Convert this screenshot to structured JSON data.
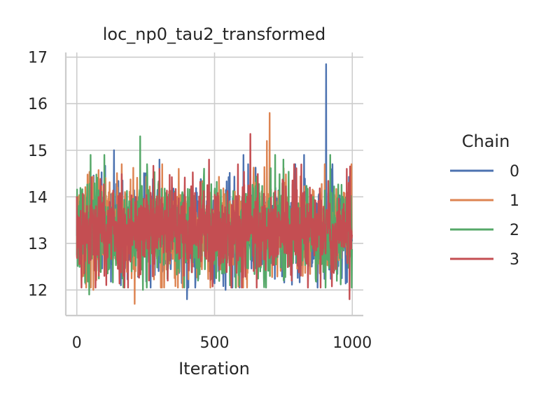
{
  "chart_data": {
    "type": "line",
    "title": "loc_np0_tau2_transformed",
    "xlabel": "Iteration",
    "ylabel": "",
    "xlim": [
      -40,
      1040
    ],
    "ylim": [
      11.45,
      17.1
    ],
    "x_ticks": [
      0,
      500,
      1000
    ],
    "x_tick_labels": [
      "0",
      "500",
      "1000"
    ],
    "y_ticks": [
      12,
      13,
      14,
      15,
      16,
      17
    ],
    "y_tick_labels": [
      "12",
      "13",
      "14",
      "15",
      "16",
      "17"
    ],
    "grid": true,
    "legend": {
      "title": "Chain",
      "placement": "right"
    },
    "n_iterations": 1000,
    "series": [
      {
        "name": "0",
        "color": "#4c72b0",
        "mean": 13.3,
        "spread": 0.5,
        "seed": 11,
        "extremes": [
          {
            "x": 905,
            "y": 16.85
          },
          {
            "x": 400,
            "y": 11.8
          },
          {
            "x": 135,
            "y": 15.0
          },
          {
            "x": 300,
            "y": 14.8
          },
          {
            "x": 605,
            "y": 14.9
          },
          {
            "x": 825,
            "y": 14.9
          },
          {
            "x": 40,
            "y": 12.2
          },
          {
            "x": 160,
            "y": 12.1
          },
          {
            "x": 540,
            "y": 12.0
          },
          {
            "x": 960,
            "y": 12.3
          }
        ]
      },
      {
        "name": "1",
        "color": "#dd8452",
        "mean": 13.3,
        "spread": 0.5,
        "seed": 23,
        "extremes": [
          {
            "x": 700,
            "y": 15.8
          },
          {
            "x": 690,
            "y": 15.2
          },
          {
            "x": 210,
            "y": 11.7
          },
          {
            "x": 310,
            "y": 14.7
          },
          {
            "x": 370,
            "y": 14.6
          },
          {
            "x": 900,
            "y": 14.7
          },
          {
            "x": 60,
            "y": 12.0
          },
          {
            "x": 820,
            "y": 12.3
          },
          {
            "x": 480,
            "y": 12.4
          }
        ]
      },
      {
        "name": "2",
        "color": "#55a868",
        "mean": 13.3,
        "spread": 0.5,
        "seed": 37,
        "extremes": [
          {
            "x": 230,
            "y": 15.3
          },
          {
            "x": 50,
            "y": 14.9
          },
          {
            "x": 100,
            "y": 14.9
          },
          {
            "x": 255,
            "y": 14.7
          },
          {
            "x": 720,
            "y": 14.9
          },
          {
            "x": 920,
            "y": 14.9
          },
          {
            "x": 750,
            "y": 14.8
          },
          {
            "x": 45,
            "y": 11.9
          },
          {
            "x": 590,
            "y": 12.1
          },
          {
            "x": 440,
            "y": 12.2
          },
          {
            "x": 240,
            "y": 12.0
          }
        ]
      },
      {
        "name": "3",
        "color": "#c44e52",
        "mean": 13.3,
        "spread": 0.5,
        "seed": 53,
        "extremes": [
          {
            "x": 630,
            "y": 15.35
          },
          {
            "x": 990,
            "y": 11.8
          },
          {
            "x": 480,
            "y": 14.8
          },
          {
            "x": 300,
            "y": 14.6
          },
          {
            "x": 100,
            "y": 12.3
          },
          {
            "x": 330,
            "y": 12.2
          },
          {
            "x": 560,
            "y": 12.3
          },
          {
            "x": 780,
            "y": 12.2
          },
          {
            "x": 980,
            "y": 14.6
          }
        ]
      }
    ]
  }
}
